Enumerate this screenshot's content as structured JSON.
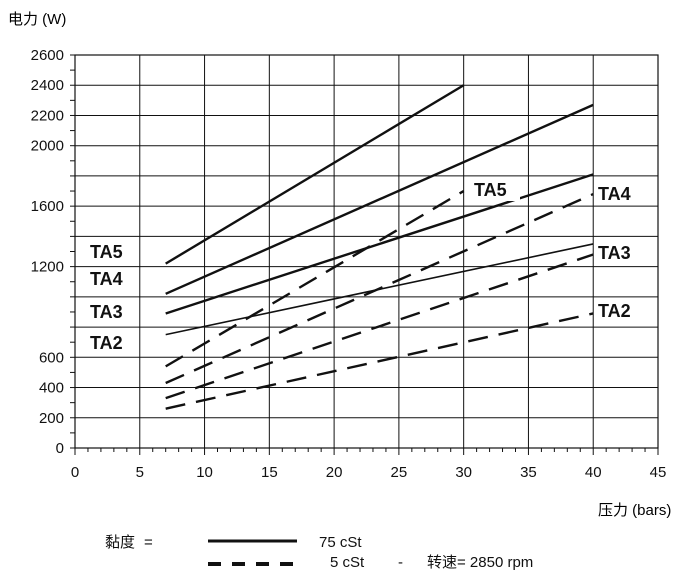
{
  "chart_data": {
    "type": "line",
    "ylabel": "电力 (W)",
    "xlabel": "压力 (bars)",
    "xlim": [
      0,
      45
    ],
    "ylim": [
      0,
      2600
    ],
    "x_ticks": [
      0,
      5,
      10,
      15,
      20,
      25,
      30,
      35,
      40,
      45
    ],
    "y_tick_labels": [
      0,
      200,
      400,
      600,
      1200,
      1600,
      2000,
      2200,
      2400,
      2600
    ],
    "y_grid": [
      0,
      200,
      400,
      600,
      800,
      1000,
      1200,
      1400,
      1600,
      1800,
      2000,
      2200,
      2400,
      2600
    ],
    "grid": true,
    "series": [
      {
        "name": "TA5",
        "style": "solid",
        "x": [
          7,
          30
        ],
        "y": [
          1220,
          2400
        ]
      },
      {
        "name": "TA4",
        "style": "solid",
        "x": [
          7,
          40
        ],
        "y": [
          1020,
          2270
        ]
      },
      {
        "name": "TA3",
        "style": "solid",
        "x": [
          7,
          40
        ],
        "y": [
          890,
          1810
        ]
      },
      {
        "name": "TA2",
        "style": "solid",
        "x": [
          7,
          40
        ],
        "y": [
          750,
          1350
        ]
      },
      {
        "name": "TA5",
        "style": "dashed",
        "x": [
          7,
          30
        ],
        "y": [
          540,
          1700
        ]
      },
      {
        "name": "TA4",
        "style": "dashed",
        "x": [
          7,
          40
        ],
        "y": [
          430,
          1680
        ]
      },
      {
        "name": "TA3",
        "style": "dashed",
        "x": [
          7,
          40
        ],
        "y": [
          330,
          1280
        ]
      },
      {
        "name": "TA2",
        "style": "dashed",
        "x": [
          7,
          40
        ],
        "y": [
          260,
          890
        ]
      }
    ],
    "annotations": [
      "TA5",
      "TA4",
      "TA3",
      "TA2",
      "TA5",
      "TA4",
      "TA3",
      "TA2"
    ],
    "legend": {
      "viscosity_label": "黏度",
      "equals": "=",
      "solid_label": "75 cSt",
      "dashed_label": "5 cSt",
      "dash_sep": "-",
      "speed_label": "转速= 2850 rpm"
    }
  }
}
